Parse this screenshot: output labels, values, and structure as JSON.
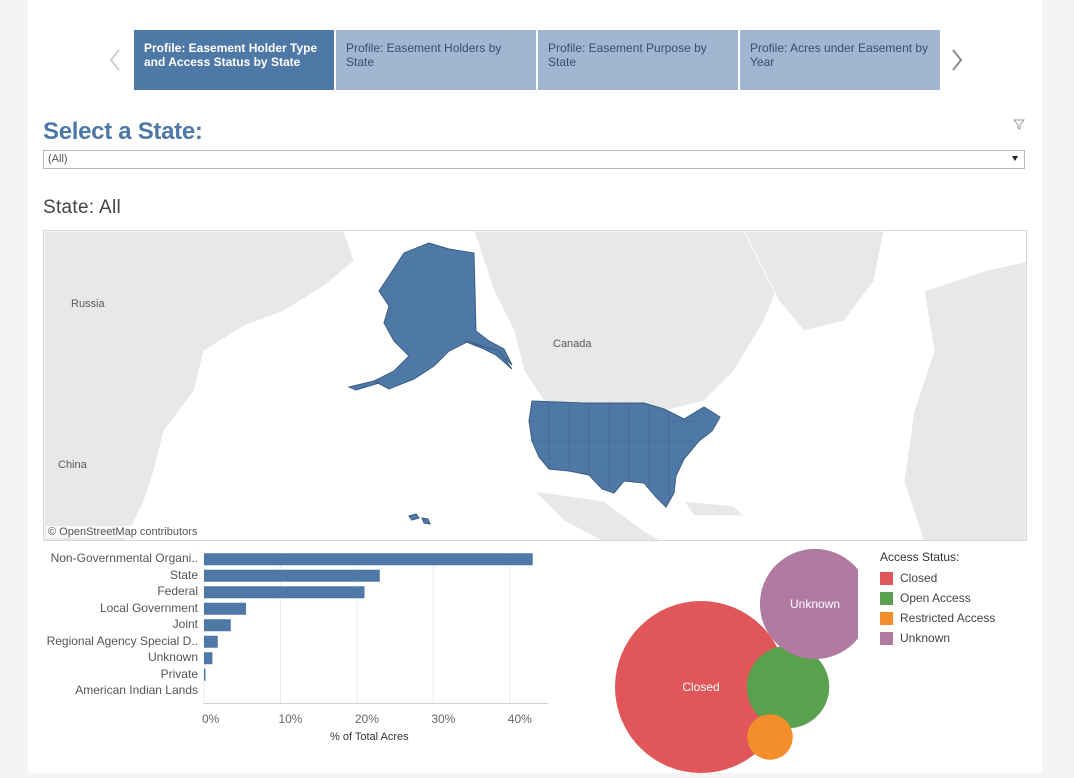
{
  "tabs": [
    {
      "label": "Profile: Easement Holder Type and Access Status by  State",
      "active": true
    },
    {
      "label": "Profile: Easement Holders by State",
      "active": false
    },
    {
      "label": "Profile: Easement Purpose by State",
      "active": false
    },
    {
      "label": "Profile: Acres under Easement by Year",
      "active": false
    }
  ],
  "filter": {
    "title": "Select a State:",
    "selected": "(All)"
  },
  "state_heading": "State: All",
  "map": {
    "labels": {
      "russia": "Russia",
      "canada": "Canada",
      "china": "China"
    },
    "credit": "© OpenStreetMap contributors",
    "highlight_color": "#4e79a7"
  },
  "chart_data": [
    {
      "type": "bar",
      "orientation": "horizontal",
      "categories": [
        "Non-Governmental Organi..",
        "State",
        "Federal",
        "Local Government",
        "Joint",
        "Regional Agency Special D..",
        "Unknown",
        "Private",
        "American Indian Lands"
      ],
      "values": [
        43,
        23,
        21,
        5.5,
        3.5,
        1.8,
        1.1,
        0.2,
        0
      ],
      "xlabel": "% of Total Acres",
      "xlim": [
        0,
        45
      ],
      "xticks": [
        "0%",
        "10%",
        "20%",
        "30%",
        "40%"
      ],
      "xtick_values": [
        0,
        10,
        20,
        30,
        40
      ],
      "color": "#4e79a7",
      "grid": true
    },
    {
      "type": "bubble",
      "title": "Access Status:",
      "series": [
        {
          "name": "Closed",
          "value": 100,
          "color": "#e15759",
          "label": "Closed"
        },
        {
          "name": "Open Access",
          "value": 23,
          "color": "#59a14f",
          "label": ""
        },
        {
          "name": "Restricted Access",
          "value": 7,
          "color": "#f28e2b",
          "label": ""
        },
        {
          "name": "Unknown",
          "value": 41,
          "color": "#b07aa1",
          "label": "Unknown"
        }
      ]
    }
  ],
  "legend": {
    "title": "Access Status:",
    "items": [
      {
        "label": "Closed",
        "color": "#e15759"
      },
      {
        "label": "Open Access",
        "color": "#59a14f"
      },
      {
        "label": "Restricted Access",
        "color": "#f28e2b"
      },
      {
        "label": "Unknown",
        "color": "#b07aa1"
      }
    ]
  }
}
